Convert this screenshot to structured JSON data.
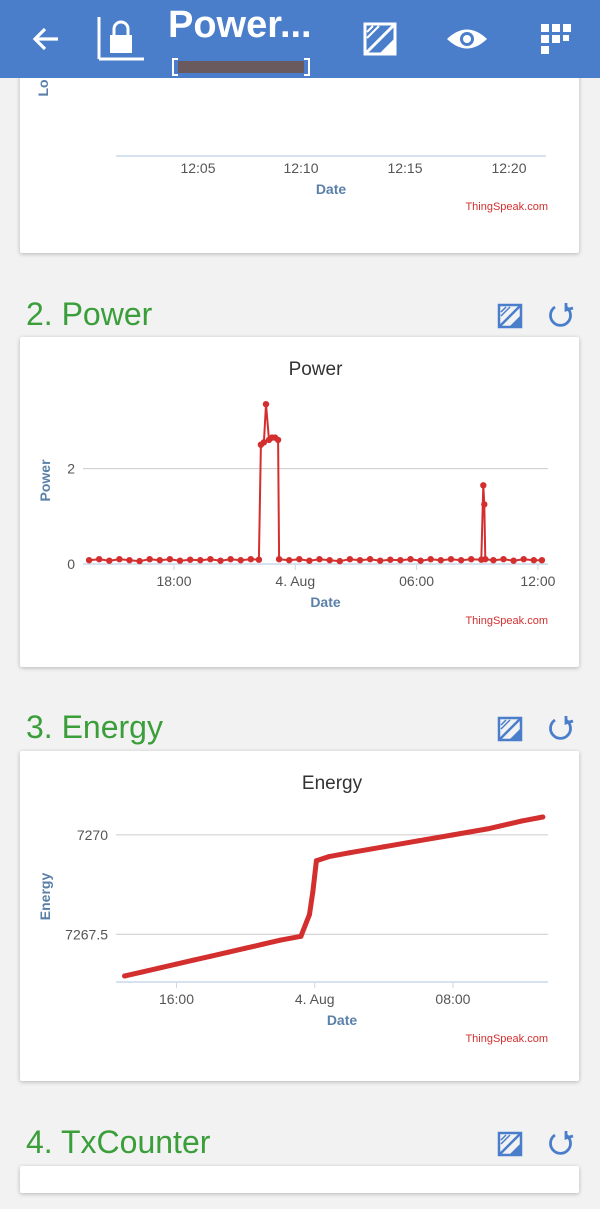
{
  "appbar": {
    "title": "Power...",
    "icons": [
      "back-arrow-icon",
      "lock-icon",
      "edit-chart-icon",
      "eye-icon",
      "qr-grid-icon"
    ]
  },
  "colors": {
    "appbar": "#4a7ecb",
    "section_title": "#3a9e3a",
    "series": "#d32f2f",
    "axis_title": "#5a7fa8"
  },
  "chart1": {
    "x_ticks": [
      "12:05",
      "12:10",
      "12:15",
      "12:20"
    ],
    "xlabel": "Date",
    "ylabel_partial": "Lo",
    "credit": "ThingSpeak.com"
  },
  "sections": [
    {
      "title": "2. Power"
    },
    {
      "title": "3. Energy"
    },
    {
      "title": "4. TxCounter"
    }
  ],
  "chart_data": [
    {
      "type": "line",
      "title": "Power",
      "xlabel": "Date",
      "ylabel": "Power",
      "x_ticks": [
        "18:00",
        "4. Aug",
        "06:00",
        "12:00"
      ],
      "y_ticks": [
        "0",
        "2"
      ],
      "ylim": [
        0,
        3.5
      ],
      "credit": "ThingSpeak.com",
      "series": [
        {
          "points": [
            [
              13.8,
              0.08
            ],
            [
              14.3,
              0.1
            ],
            [
              14.8,
              0.07
            ],
            [
              15.3,
              0.1
            ],
            [
              15.8,
              0.08
            ],
            [
              16.3,
              0.06
            ],
            [
              16.8,
              0.1
            ],
            [
              17.3,
              0.08
            ],
            [
              17.8,
              0.1
            ],
            [
              18.3,
              0.07
            ],
            [
              18.8,
              0.09
            ],
            [
              19.3,
              0.08
            ],
            [
              19.8,
              0.1
            ],
            [
              20.3,
              0.07
            ],
            [
              20.8,
              0.1
            ],
            [
              21.3,
              0.08
            ],
            [
              21.8,
              0.1
            ],
            [
              22.2,
              0.09
            ],
            [
              22.3,
              2.5
            ],
            [
              22.45,
              2.55
            ],
            [
              22.55,
              3.35
            ],
            [
              22.7,
              2.6
            ],
            [
              22.85,
              2.65
            ],
            [
              23.0,
              2.65
            ],
            [
              23.15,
              2.6
            ],
            [
              23.2,
              0.1
            ],
            [
              23.7,
              0.08
            ],
            [
              24.2,
              0.1
            ],
            [
              24.7,
              0.07
            ],
            [
              25.2,
              0.1
            ],
            [
              25.7,
              0.08
            ],
            [
              26.2,
              0.06
            ],
            [
              26.7,
              0.1
            ],
            [
              27.2,
              0.08
            ],
            [
              27.7,
              0.1
            ],
            [
              28.2,
              0.07
            ],
            [
              28.7,
              0.09
            ],
            [
              29.2,
              0.08
            ],
            [
              29.7,
              0.1
            ],
            [
              30.2,
              0.07
            ],
            [
              30.7,
              0.1
            ],
            [
              31.2,
              0.08
            ],
            [
              31.7,
              0.1
            ],
            [
              32.2,
              0.08
            ],
            [
              32.7,
              0.1
            ],
            [
              33.2,
              0.09
            ],
            [
              33.3,
              1.65
            ],
            [
              33.35,
              1.25
            ],
            [
              33.4,
              0.1
            ],
            [
              33.8,
              0.08
            ],
            [
              34.3,
              0.1
            ],
            [
              34.8,
              0.07
            ],
            [
              35.3,
              0.1
            ],
            [
              35.8,
              0.08
            ],
            [
              36.2,
              0.08
            ]
          ]
        }
      ]
    },
    {
      "type": "line",
      "title": "Energy",
      "xlabel": "Date",
      "ylabel": "Energy",
      "x_ticks": [
        "16:00",
        "4. Aug",
        "08:00"
      ],
      "y_ticks": [
        "7267.5",
        "7270"
      ],
      "ylim": [
        7266.3,
        7270.6
      ],
      "credit": "ThingSpeak.com",
      "series": [
        {
          "points": [
            [
              13.0,
              7266.45
            ],
            [
              14.0,
              7266.55
            ],
            [
              15.0,
              7266.65
            ],
            [
              16.0,
              7266.75
            ],
            [
              17.0,
              7266.85
            ],
            [
              18.0,
              7266.95
            ],
            [
              19.0,
              7267.05
            ],
            [
              20.0,
              7267.15
            ],
            [
              21.0,
              7267.25
            ],
            [
              22.0,
              7267.35
            ],
            [
              23.2,
              7267.45
            ],
            [
              23.7,
              7268.0
            ],
            [
              23.9,
              7268.6
            ],
            [
              24.1,
              7269.35
            ],
            [
              24.8,
              7269.45
            ],
            [
              26.0,
              7269.55
            ],
            [
              28.0,
              7269.7
            ],
            [
              30.0,
              7269.85
            ],
            [
              32.0,
              7270.0
            ],
            [
              34.0,
              7270.15
            ],
            [
              36.0,
              7270.35
            ],
            [
              37.2,
              7270.45
            ]
          ]
        }
      ]
    }
  ]
}
